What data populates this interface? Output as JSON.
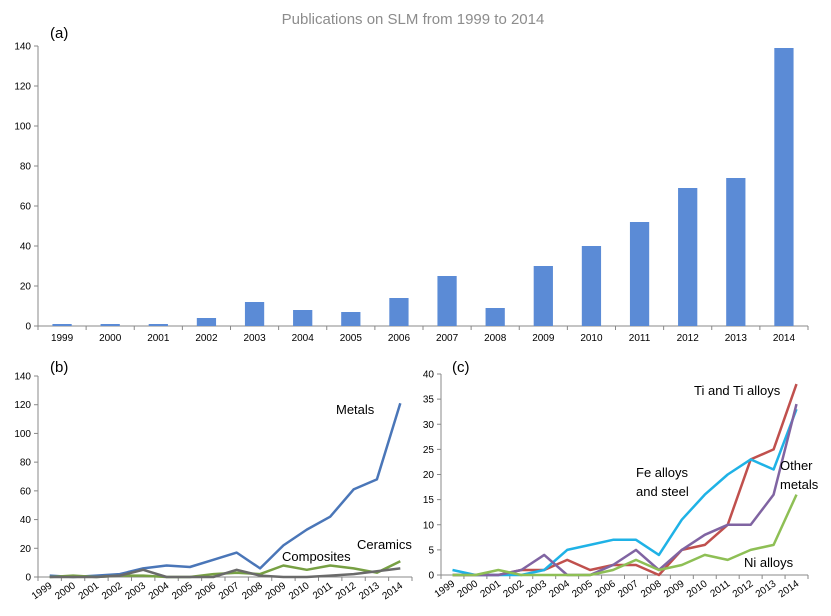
{
  "figure_title": "Publications on SLM from 1999 to 2014",
  "colors": {
    "bar": "#5b8bd6",
    "axis": "#888888",
    "metals": "#4a76b8",
    "composites": "#77a043",
    "ceramics": "#6a6a6a",
    "ti_alloys": "#c0504d",
    "fe_alloys": "#1fb2e6",
    "other_metals": "#8064a2",
    "ni_alloys": "#8ebf55"
  },
  "chart_data": [
    {
      "id": "a",
      "panel_label": "(a)",
      "type": "bar",
      "categories": [
        "1999",
        "2000",
        "2001",
        "2002",
        "2003",
        "2004",
        "2005",
        "2006",
        "2007",
        "2008",
        "2009",
        "2010",
        "2011",
        "2012",
        "2013",
        "2014"
      ],
      "values": [
        1,
        1,
        1,
        4,
        12,
        8,
        7,
        14,
        25,
        9,
        30,
        40,
        52,
        69,
        74,
        139
      ],
      "ylim": [
        0,
        140
      ],
      "yticks": [
        0,
        20,
        40,
        60,
        80,
        100,
        120,
        140
      ],
      "grid": false
    },
    {
      "id": "b",
      "panel_label": "(b)",
      "type": "line",
      "categories": [
        "1999",
        "2000",
        "2001",
        "2002",
        "2003",
        "2004",
        "2005",
        "2006",
        "2007",
        "2008",
        "2009",
        "2010",
        "2011",
        "2012",
        "2013",
        "2014"
      ],
      "ylim": [
        0,
        140
      ],
      "yticks": [
        0,
        20,
        40,
        60,
        80,
        100,
        120,
        140
      ],
      "series": [
        {
          "name": "Metals",
          "color_key": "metals",
          "values": [
            1,
            0,
            1,
            2,
            6,
            8,
            7,
            12,
            17,
            6,
            22,
            33,
            42,
            61,
            68,
            121
          ]
        },
        {
          "name": "Composites",
          "color_key": "composites",
          "values": [
            0,
            1,
            0,
            1,
            1,
            0,
            0,
            2,
            3,
            2,
            8,
            5,
            8,
            6,
            3,
            11
          ]
        },
        {
          "name": "Ceramics",
          "color_key": "ceramics",
          "values": [
            0,
            0,
            0,
            1,
            5,
            0,
            0,
            0,
            5,
            1,
            0,
            0,
            1,
            2,
            4,
            6
          ]
        }
      ]
    },
    {
      "id": "c",
      "panel_label": "(c)",
      "type": "line",
      "categories": [
        "1999",
        "2000",
        "2001",
        "2002",
        "2003",
        "2004",
        "2005",
        "2006",
        "2007",
        "2008",
        "2009",
        "2010",
        "2011",
        "2012",
        "2013",
        "2014"
      ],
      "ylim": [
        0,
        40
      ],
      "yticks": [
        0,
        5,
        10,
        15,
        20,
        25,
        30,
        35,
        40
      ],
      "series": [
        {
          "name": "Ti and Ti alloys",
          "color_key": "ti_alloys",
          "values": [
            0,
            0,
            0,
            1,
            1,
            3,
            1,
            2,
            2,
            0,
            5,
            6,
            10,
            23,
            25,
            38
          ]
        },
        {
          "name": "Fe alloys and steel",
          "color_key": "fe_alloys",
          "values": [
            1,
            0,
            0,
            0,
            1,
            5,
            6,
            7,
            7,
            4,
            11,
            16,
            20,
            23,
            21,
            33
          ]
        },
        {
          "name": "Other metals",
          "color_key": "other_metals",
          "values": [
            0,
            0,
            0,
            1,
            4,
            0,
            0,
            2,
            5,
            1,
            5,
            8,
            10,
            10,
            16,
            34
          ]
        },
        {
          "name": "Ni alloys",
          "color_key": "ni_alloys",
          "values": [
            0,
            0,
            1,
            0,
            0,
            0,
            0,
            1,
            3,
            1,
            2,
            4,
            3,
            5,
            6,
            16
          ]
        }
      ]
    }
  ],
  "annotations": {
    "metals": "Metals",
    "composites": "Composites",
    "ceramics": "Ceramics",
    "ti_alloys": "Ti and Ti alloys",
    "fe_line1": "Fe alloys",
    "fe_line2": "and steel",
    "other_line1": "Other",
    "other_line2": "metals",
    "ni_alloys": "Ni alloys"
  }
}
